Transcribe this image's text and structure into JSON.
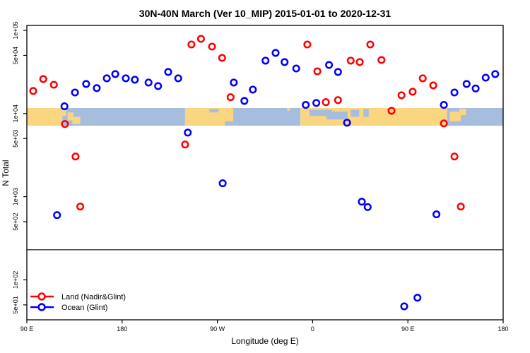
{
  "chart_data": {
    "type": "scatter",
    "title": "30N-40N March (Ver 10_MIP)   2015-01-01 to 2020-12-31",
    "xlabel": "Longitude (deg E)",
    "ylabel": "N Total",
    "x_axis": {
      "range_deg_east": [
        90,
        540
      ],
      "ticks": [
        {
          "lon": 90,
          "label": "90 E"
        },
        {
          "lon": 180,
          "label": "180"
        },
        {
          "lon": 270,
          "label": "90 W"
        },
        {
          "lon": 360,
          "label": "0"
        },
        {
          "lon": 450,
          "label": "90 E"
        },
        {
          "lon": 540,
          "label": "180"
        }
      ]
    },
    "y_axis": {
      "scale": "log",
      "range": [
        33,
        114000
      ],
      "ticks": [
        {
          "value": 100000,
          "label": "1e+05"
        },
        {
          "value": 50000,
          "label": "5e+04"
        },
        {
          "value": 10000,
          "label": "1e+04"
        },
        {
          "value": 5000,
          "label": "5e+03"
        },
        {
          "value": 1000,
          "label": "1e+03"
        },
        {
          "value": 500,
          "label": "5e+02"
        },
        {
          "value": 100,
          "label": "1e+02"
        },
        {
          "value": 50,
          "label": "5e+01"
        }
      ]
    },
    "hline_value": 230,
    "series": [
      {
        "name": "Land (Nadir&Glint)",
        "color": "#ff0000",
        "points": [
          [
            96,
            18700
          ],
          [
            105.5,
            26000
          ],
          [
            115.5,
            22200
          ],
          [
            126,
            7470
          ],
          [
            136,
            3040
          ],
          [
            140.5,
            760
          ],
          [
            239.5,
            4240
          ],
          [
            245.5,
            67600
          ],
          [
            254.5,
            79100
          ],
          [
            265,
            63800
          ],
          [
            274.5,
            46700
          ],
          [
            282.5,
            15700
          ],
          [
            355,
            67600
          ],
          [
            364.5,
            32200
          ],
          [
            372.5,
            13700
          ],
          [
            384,
            14500
          ],
          [
            396,
            43200
          ],
          [
            404.5,
            41600
          ],
          [
            414.5,
            67600
          ],
          [
            425,
            44000
          ],
          [
            434.5,
            10800
          ],
          [
            444,
            16600
          ],
          [
            454.5,
            18300
          ],
          [
            464,
            26500
          ],
          [
            474,
            21800
          ],
          [
            484,
            7600
          ],
          [
            494,
            3040
          ],
          [
            500,
            760
          ]
        ]
      },
      {
        "name": "Ocean (Glint)",
        "color": "#0000ff",
        "points": [
          [
            118.5,
            600
          ],
          [
            125.5,
            12200
          ],
          [
            135.5,
            17900
          ],
          [
            146,
            22700
          ],
          [
            156,
            20200
          ],
          [
            165.5,
            26500
          ],
          [
            173.5,
            29800
          ],
          [
            183.5,
            26500
          ],
          [
            192,
            25500
          ],
          [
            205,
            23600
          ],
          [
            214,
            21400
          ],
          [
            223.5,
            31600
          ],
          [
            233,
            26500
          ],
          [
            242,
            5900
          ],
          [
            275,
            1450
          ],
          [
            285.5,
            23600
          ],
          [
            295.5,
            14200
          ],
          [
            303.5,
            19400
          ],
          [
            315.5,
            43200
          ],
          [
            325,
            53600
          ],
          [
            333.5,
            41600
          ],
          [
            344.5,
            34800
          ],
          [
            353.5,
            12700
          ],
          [
            363.5,
            13400
          ],
          [
            375.5,
            38400
          ],
          [
            384,
            31600
          ],
          [
            392.5,
            7760
          ],
          [
            406.5,
            870
          ],
          [
            412,
            750
          ],
          [
            446.5,
            48
          ],
          [
            459,
            61
          ],
          [
            477,
            613
          ],
          [
            484,
            12700
          ],
          [
            494,
            17900
          ],
          [
            505.5,
            22700
          ],
          [
            514,
            20000
          ],
          [
            523.5,
            27000
          ],
          [
            532.5,
            29800
          ]
        ]
      }
    ],
    "legend": {
      "items": [
        {
          "label": "Land (Nadir&Glint)",
          "color": "#ff0000"
        },
        {
          "label": "Ocean (Glint)",
          "color": "#0000ff"
        }
      ]
    },
    "map_band": {
      "center_value": 10000,
      "land_color": "#fbd680",
      "ocean_color": "#a6bdde",
      "segments": [
        {
          "type": "land",
          "lon0": 90,
          "lon1": 123.5
        },
        {
          "type": "ocean",
          "lon0": 123.5,
          "lon1": 239.5
        },
        {
          "type": "land",
          "lon0": 239.5,
          "lon1": 285
        },
        {
          "type": "ocean",
          "lon0": 285,
          "lon1": 348.5
        },
        {
          "type": "land",
          "lon0": 348.5,
          "lon1": 487
        },
        {
          "type": "ocean",
          "lon0": 487,
          "lon1": 540
        }
      ],
      "patches": [
        {
          "name": "korea",
          "type": "land",
          "lon0": 123.5,
          "lon1": 127,
          "f0": 0.05,
          "f1": 0.45
        },
        {
          "name": "japan-west",
          "type": "land",
          "lon0": 128.5,
          "lon1": 134,
          "f0": 0.25,
          "f1": 0.7
        },
        {
          "name": "japan-east",
          "type": "land",
          "lon0": 133,
          "lon1": 140.5,
          "f0": 0.5,
          "f1": 0.9
        },
        {
          "name": "great-lakes",
          "type": "ocean",
          "lon0": 262.5,
          "lon1": 271,
          "f0": 0.05,
          "f1": 0.25
        },
        {
          "name": "gulf-of-mexico",
          "type": "ocean",
          "lon0": 277,
          "lon1": 285,
          "f0": 0.75,
          "f1": 1.0
        },
        {
          "name": "atlantic-island",
          "type": "land",
          "lon0": 336,
          "lon1": 338.5,
          "f0": 0.0,
          "f1": 0.15
        },
        {
          "name": "mediterranean-west",
          "type": "ocean",
          "lon0": 357,
          "lon1": 378.5,
          "f0": 0.1,
          "f1": 0.45
        },
        {
          "name": "mediterranean-east",
          "type": "ocean",
          "lon0": 373,
          "lon1": 393,
          "f0": 0.2,
          "f1": 0.65
        },
        {
          "name": "black-sea",
          "type": "ocean",
          "lon0": 396,
          "lon1": 404,
          "f0": 0.1,
          "f1": 0.5
        },
        {
          "name": "caspian-sea",
          "type": "ocean",
          "lon0": 408,
          "lon1": 413,
          "f0": 0.05,
          "f1": 0.5
        },
        {
          "name": "japan2-south",
          "type": "land",
          "lon0": 489.5,
          "lon1": 500,
          "f0": 0.2,
          "f1": 0.75
        },
        {
          "name": "japan2-north",
          "type": "land",
          "lon0": 498.5,
          "lon1": 505,
          "f0": 0.05,
          "f1": 0.4
        }
      ]
    }
  }
}
